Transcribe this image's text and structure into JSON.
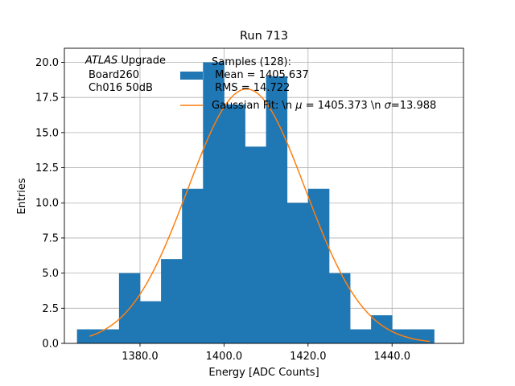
{
  "chart_data": {
    "type": "bar",
    "title": "Run 713",
    "xlabel": "Energy [ADC Counts]",
    "ylabel": "Entries",
    "xlim": [
      1362,
      1457
    ],
    "ylim": [
      0,
      21
    ],
    "grid": true,
    "x_ticks": [
      1380,
      1400,
      1420,
      1440
    ],
    "x_tick_labels": [
      "1380.0",
      "1400.0",
      "1420.0",
      "1440.0"
    ],
    "y_ticks": [
      0,
      2.5,
      5,
      7.5,
      10,
      12.5,
      15,
      17.5,
      20
    ],
    "y_tick_labels": [
      "0.0",
      "2.5",
      "5.0",
      "7.5",
      "10.0",
      "12.5",
      "15.0",
      "17.5",
      "20.0"
    ],
    "annotation": {
      "italic_part": "ATLAS",
      "line1_rest": " Upgrade",
      "line2": "Board260",
      "line3": "Ch016 50dB"
    },
    "legend": {
      "position": "top-right",
      "hist_lines": [
        "Samples (128):",
        " Mean = 1405.637",
        " RMS = 14.722"
      ],
      "fit_label_parts": [
        "Gaussian Fit: \\n ",
        "μ",
        " = 1405.373 \\n ",
        "σ",
        "=13.988"
      ]
    },
    "histogram": {
      "name": "Samples (128):",
      "color": "#1f77b4",
      "bin_edges": [
        1365,
        1370,
        1375,
        1380,
        1385,
        1390,
        1395,
        1400,
        1405,
        1410,
        1415,
        1420,
        1425,
        1430,
        1435,
        1440,
        1445,
        1450
      ],
      "counts": [
        1,
        1,
        5,
        3,
        6,
        11,
        20,
        17,
        14,
        19,
        10,
        11,
        5,
        1,
        2,
        1,
        1
      ]
    },
    "fit": {
      "name": "Gaussian Fit",
      "color": "#ff7f0e",
      "mu": 1405.373,
      "sigma": 13.988,
      "amplitude": 18.1,
      "x_range": [
        1368,
        1449
      ]
    }
  }
}
